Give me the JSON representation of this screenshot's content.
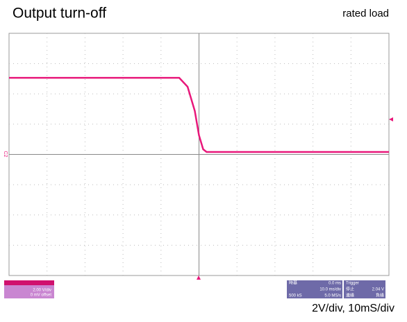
{
  "chart_data": {
    "type": "line",
    "title": "Output turn-off",
    "subtitle": "rated load",
    "note": "2V/div, 10mS/div",
    "channel_label": "C2",
    "x": [
      -50,
      -5.2,
      -3,
      -1.1,
      0,
      1.1,
      2,
      50
    ],
    "series": [
      {
        "name": "C2",
        "color": "#e8177a",
        "values": [
          5.06,
          5.06,
          4.47,
          2.87,
          1.26,
          0.34,
          0.16,
          0.16
        ]
      }
    ],
    "xlim": [
      -50,
      50
    ],
    "ylim": [
      -8,
      8
    ],
    "grid": true,
    "channel_panel": {
      "volts_div": "2.00 V/div",
      "offset": "0 mV offset"
    },
    "timebase_panel": {
      "label": "時基",
      "delay": "0.0 ms",
      "time_div": "10.0 ms/div",
      "samples": "500 kS",
      "rate": "5.0 MS/s"
    },
    "trigger_panel": {
      "label": "Trigger",
      "mode": "停止",
      "level": "2.04 V",
      "type": "邊緣",
      "slope": "負緣"
    }
  }
}
